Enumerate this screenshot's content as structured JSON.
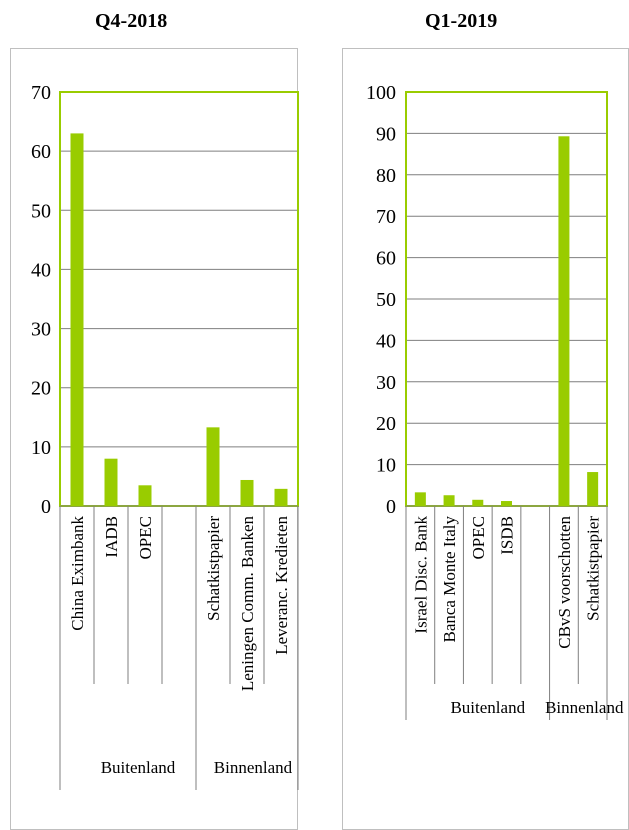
{
  "chart_data": [
    {
      "type": "bar",
      "title": "Q4-2018",
      "xlabel": "",
      "ylabel": "",
      "categories": [
        "China Eximbank",
        "IADB",
        "OPEC",
        "",
        "Schatkistpapier",
        "Leningen Comm. Banken",
        "Leveranc. Kredieten"
      ],
      "values": [
        63,
        8,
        3.5,
        null,
        13.3,
        4.4,
        2.9
      ],
      "groups": [
        "Buitenland",
        "Binnenland"
      ],
      "ylim": [
        0,
        70
      ],
      "yticks": [
        "0",
        "10",
        "20",
        "30",
        "40",
        "50",
        "60",
        "70"
      ],
      "grid": true,
      "bar_color": "#99cc00",
      "frame_color": "#99cc00"
    },
    {
      "type": "bar",
      "title": "Q1-2019",
      "xlabel": "",
      "ylabel": "",
      "categories": [
        "Israel Disc. Bank",
        "Banca Monte Italy",
        "OPEC",
        "ISDB",
        "",
        "CBvS voorschotten",
        "Schatkistpapier"
      ],
      "values": [
        3.3,
        2.6,
        1.5,
        1.2,
        null,
        89.3,
        8.2
      ],
      "groups": [
        "Buitenland",
        "Binnenland"
      ],
      "ylim": [
        0,
        100
      ],
      "yticks": [
        "0",
        "10",
        "20",
        "30",
        "40",
        "50",
        "60",
        "70",
        "80",
        "90",
        "100"
      ],
      "grid": true,
      "bar_color": "#99cc00",
      "frame_color": "#99cc00"
    }
  ]
}
